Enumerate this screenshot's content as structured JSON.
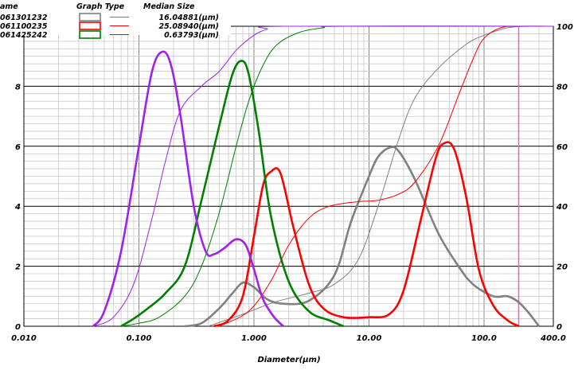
{
  "chart_data": {
    "type": "line",
    "title": "",
    "xlabel": "Diameter(µm)",
    "ylabel": "",
    "x_scale": "log",
    "xlim": [
      0.01,
      400
    ],
    "ylim_left": [
      0,
      10
    ],
    "ylim_right": [
      0,
      100
    ],
    "grid": true,
    "legend_placement": "top-left",
    "x_ticks": [
      {
        "value": 0.01,
        "label": "0.010"
      },
      {
        "value": 0.1,
        "label": "0.100"
      },
      {
        "value": 1,
        "label": "1.000"
      },
      {
        "value": 10,
        "label": "10.00"
      },
      {
        "value": 100,
        "label": "100.0"
      },
      {
        "value": 400,
        "label": "400.0"
      }
    ],
    "y_left_ticks": [
      {
        "value": 0,
        "label": "0"
      },
      {
        "value": 2,
        "label": "2"
      },
      {
        "value": 4,
        "label": "4"
      },
      {
        "value": 6,
        "label": "6"
      },
      {
        "value": 8,
        "label": "8"
      },
      {
        "value": 10,
        "label": "10"
      }
    ],
    "y_right_ticks": [
      {
        "value": 0,
        "label": "0"
      },
      {
        "value": 20,
        "label": "20"
      },
      {
        "value": 40,
        "label": "40"
      },
      {
        "value": 60,
        "label": "60"
      },
      {
        "value": 80,
        "label": "80"
      },
      {
        "value": 100,
        "label": "100"
      }
    ],
    "legend": {
      "headers": [
        "ame",
        "Graph Type",
        "Median Size"
      ],
      "rows": [
        {
          "name": "061301232",
          "median": "16.04881(µm)",
          "color": "#808080"
        },
        {
          "name": "061100235",
          "median": "25.08940(µm)",
          "color": "#ff0000"
        },
        {
          "name": "061425242",
          "median": "0.63793(µm)",
          "color": "#008000"
        }
      ]
    },
    "reference_line": {
      "x": 200,
      "color": "#e060e0"
    },
    "series": [
      {
        "name": "061301232",
        "color": "#808080",
        "frequency": [
          [
            0.25,
            0
          ],
          [
            0.35,
            0.1
          ],
          [
            0.5,
            0.6
          ],
          [
            0.65,
            1.1
          ],
          [
            0.8,
            1.45
          ],
          [
            1,
            1.3
          ],
          [
            1.3,
            0.9
          ],
          [
            1.8,
            0.75
          ],
          [
            3,
            0.85
          ],
          [
            5,
            1.7
          ],
          [
            7,
            3.5
          ],
          [
            10,
            5.0
          ],
          [
            12,
            5.65
          ],
          [
            15,
            5.95
          ],
          [
            18,
            5.85
          ],
          [
            25,
            4.9
          ],
          [
            40,
            3.1
          ],
          [
            60,
            2.0
          ],
          [
            80,
            1.4
          ],
          [
            120,
            1.0
          ],
          [
            160,
            1.0
          ],
          [
            200,
            0.8
          ],
          [
            250,
            0.4
          ],
          [
            300,
            0
          ]
        ],
        "cumulative": [
          [
            0.4,
            0
          ],
          [
            0.8,
            4
          ],
          [
            1.5,
            8
          ],
          [
            3,
            11
          ],
          [
            5,
            14
          ],
          [
            8,
            22
          ],
          [
            12,
            40
          ],
          [
            18,
            62
          ],
          [
            25,
            76
          ],
          [
            40,
            86
          ],
          [
            70,
            94
          ],
          [
            100,
            97
          ],
          [
            160,
            99.5
          ],
          [
            250,
            100
          ],
          [
            400,
            100
          ]
        ]
      },
      {
        "name": "061100235",
        "color": "#ff0000",
        "frequency": [
          [
            0.45,
            0
          ],
          [
            0.6,
            0.2
          ],
          [
            0.8,
            1.0
          ],
          [
            1,
            3.0
          ],
          [
            1.2,
            4.7
          ],
          [
            1.4,
            5.15
          ],
          [
            1.7,
            5.1
          ],
          [
            2.2,
            3.3
          ],
          [
            3,
            1.4
          ],
          [
            4,
            0.6
          ],
          [
            6,
            0.3
          ],
          [
            10,
            0.3
          ],
          [
            15,
            0.4
          ],
          [
            20,
            1.2
          ],
          [
            28,
            3.5
          ],
          [
            38,
            5.6
          ],
          [
            45,
            6.1
          ],
          [
            55,
            5.9
          ],
          [
            70,
            4.3
          ],
          [
            90,
            1.9
          ],
          [
            120,
            0.7
          ],
          [
            160,
            0.2
          ],
          [
            200,
            0
          ]
        ],
        "cumulative": [
          [
            0.5,
            0
          ],
          [
            0.9,
            5
          ],
          [
            1.4,
            15
          ],
          [
            2,
            27
          ],
          [
            3,
            36
          ],
          [
            4.5,
            40
          ],
          [
            8,
            41.5
          ],
          [
            12,
            42
          ],
          [
            18,
            44
          ],
          [
            25,
            48
          ],
          [
            40,
            60
          ],
          [
            60,
            77
          ],
          [
            80,
            89
          ],
          [
            100,
            96
          ],
          [
            140,
            99.5
          ],
          [
            200,
            100
          ],
          [
            400,
            100
          ]
        ]
      },
      {
        "name": "061425242",
        "color": "#008000",
        "frequency": [
          [
            0.07,
            0
          ],
          [
            0.09,
            0.25
          ],
          [
            0.12,
            0.6
          ],
          [
            0.17,
            1.1
          ],
          [
            0.25,
            2.0
          ],
          [
            0.35,
            4.2
          ],
          [
            0.5,
            6.7
          ],
          [
            0.65,
            8.4
          ],
          [
            0.78,
            8.85
          ],
          [
            0.9,
            8.4
          ],
          [
            1.1,
            6.5
          ],
          [
            1.4,
            3.7
          ],
          [
            2,
            1.5
          ],
          [
            3,
            0.5
          ],
          [
            4.5,
            0.2
          ],
          [
            6,
            0
          ]
        ],
        "cumulative": [
          [
            0.07,
            0
          ],
          [
            0.1,
            1
          ],
          [
            0.15,
            3
          ],
          [
            0.25,
            10
          ],
          [
            0.35,
            20
          ],
          [
            0.5,
            38
          ],
          [
            0.7,
            60
          ],
          [
            0.9,
            75
          ],
          [
            1.2,
            87
          ],
          [
            1.6,
            94
          ],
          [
            2.5,
            98
          ],
          [
            4,
            99.5
          ],
          [
            6,
            100
          ],
          [
            400,
            100
          ]
        ]
      },
      {
        "name": "",
        "color": "#a020f0",
        "frequency": [
          [
            0.04,
            0
          ],
          [
            0.05,
            0.5
          ],
          [
            0.07,
            2.5
          ],
          [
            0.1,
            6.0
          ],
          [
            0.13,
            8.5
          ],
          [
            0.16,
            9.15
          ],
          [
            0.19,
            8.7
          ],
          [
            0.23,
            7.0
          ],
          [
            0.3,
            4.0
          ],
          [
            0.38,
            2.5
          ],
          [
            0.45,
            2.4
          ],
          [
            0.55,
            2.6
          ],
          [
            0.7,
            2.9
          ],
          [
            0.85,
            2.7
          ],
          [
            1,
            1.9
          ],
          [
            1.2,
            0.9
          ],
          [
            1.5,
            0.3
          ],
          [
            1.8,
            0
          ]
        ],
        "cumulative": [
          [
            0.04,
            0
          ],
          [
            0.06,
            3
          ],
          [
            0.09,
            14
          ],
          [
            0.13,
            36
          ],
          [
            0.17,
            55
          ],
          [
            0.23,
            72
          ],
          [
            0.35,
            80
          ],
          [
            0.5,
            85
          ],
          [
            0.7,
            92
          ],
          [
            1,
            97
          ],
          [
            1.3,
            99
          ],
          [
            1.8,
            100
          ],
          [
            400,
            100
          ]
        ]
      }
    ]
  }
}
